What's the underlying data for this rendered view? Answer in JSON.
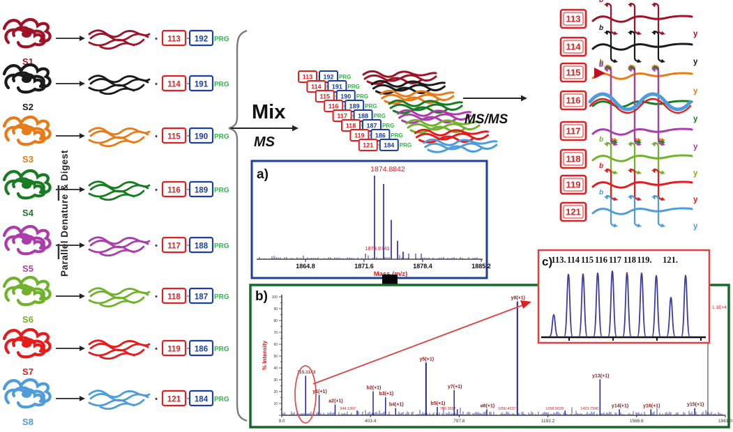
{
  "figure": {
    "left_panel": {
      "digest_label_vertical": "Parallel  Denature  & Digest",
      "plus": "•",
      "samples": [
        {
          "id": "S1",
          "color": "#9e1328",
          "reporter": "113",
          "balance": "192",
          "prg": "PRG"
        },
        {
          "id": "S2",
          "color": "#1a1a1a",
          "reporter": "114",
          "balance": "191",
          "prg": "PRG"
        },
        {
          "id": "S3",
          "color": "#e87a18",
          "reporter": "115",
          "balance": "190",
          "prg": "PRG"
        },
        {
          "id": "S4",
          "color": "#177c22",
          "reporter": "116",
          "balance": "189",
          "prg": "PRG"
        },
        {
          "id": "S5",
          "color": "#ab3dab",
          "reporter": "117",
          "balance": "188",
          "prg": "PRG"
        },
        {
          "id": "S6",
          "color": "#70b22b",
          "reporter": "118",
          "balance": "187",
          "prg": "PRG"
        },
        {
          "id": "S7",
          "color": "#e41c1c",
          "reporter": "119",
          "balance": "186",
          "prg": "PRG"
        },
        {
          "id": "S8",
          "color": "#4f9cda",
          "reporter": "121",
          "balance": "184",
          "prg": "PRG"
        }
      ]
    },
    "mix_label": "Mix",
    "ms_label": "MS",
    "msms_label": "MS/MS",
    "right_panel": {
      "reporters": [
        "113",
        "114",
        "115",
        "116",
        "117",
        "118",
        "119",
        "121"
      ],
      "b_label": "b",
      "y_label": "y"
    },
    "colors": {
      "red_box": "#e02020",
      "blue_box": "#1c3f9e",
      "prg_green": "#35b44a",
      "panel_a_border": "#1c3f9e",
      "panel_b_border": "#17682c",
      "panel_c_border": "#e04040",
      "spectrum": "#22229a",
      "annotation_red": "#d42020",
      "ion_label": "#8b2020",
      "brace": "#7a7a7a"
    }
  },
  "chart_data": [
    {
      "panel": "a",
      "panel_label": "a)",
      "type": "line",
      "xlabel": "Mass (m/z)",
      "x_tick_labels": [
        "1864.8",
        "1871.6",
        "1878.4",
        "1885.2"
      ],
      "xlim": [
        1858,
        1890
      ],
      "annotation_top": "1874.8842",
      "annotation_base": "1873.8741",
      "peaks": [
        {
          "mz": 1874.88,
          "rel": 1.0
        },
        {
          "mz": 1875.88,
          "rel": 0.9
        },
        {
          "mz": 1876.88,
          "rel": 0.47
        },
        {
          "mz": 1877.88,
          "rel": 0.22
        },
        {
          "mz": 1878.9,
          "rel": 0.09
        }
      ]
    },
    {
      "panel": "b",
      "panel_label": "b)",
      "type": "line",
      "ylabel": "% Intensity",
      "x_tick_labels": [
        "9.0",
        "403.4",
        "797.8",
        "1192.2",
        "1586.6",
        "1981.0"
      ],
      "xlim": [
        9,
        1981
      ],
      "ylim": [
        0,
        100
      ],
      "peaks": [
        {
          "mz": 115.1,
          "pct": 33,
          "top": "115.1143"
        },
        {
          "mz": 175.1,
          "pct": 17,
          "top": "y1(+1)"
        },
        {
          "mz": 246.2,
          "pct": 9,
          "top": "a2(+1)"
        },
        {
          "mz": 344.1,
          "pct": 4,
          "base": "344.1307"
        },
        {
          "mz": 415.2,
          "pct": 20,
          "top": "b2(+1)"
        },
        {
          "mz": 470.3,
          "pct": 15,
          "top": "b3(+1)"
        },
        {
          "mz": 515.3,
          "pct": 6,
          "top": "b4(+1)"
        },
        {
          "mz": 650.4,
          "pct": 44,
          "top": "y5(+1)"
        },
        {
          "mz": 700.4,
          "pct": 7,
          "top": "b5(+1)"
        },
        {
          "mz": 775.4,
          "pct": 21,
          "top": "y7(+1)"
        },
        {
          "mz": 789.4,
          "pct": 5,
          "base": "789.3637"
        },
        {
          "mz": 920.5,
          "pct": 5,
          "top": "a6(+1)"
        },
        {
          "mz": 1056.4,
          "pct": 95,
          "top": "y8(+1)",
          "base": "1056.4237"
        },
        {
          "mz": 1268.5,
          "pct": 4,
          "base": "1268.5028"
        },
        {
          "mz": 1423.8,
          "pct": 30,
          "top": "y13(+1)",
          "base": "1423.7590"
        },
        {
          "mz": 1510,
          "pct": 5,
          "top": "y14(+1)"
        },
        {
          "mz": 1650,
          "pct": 5,
          "top": "y16(+1)"
        },
        {
          "mz": 1845,
          "pct": 6,
          "top": "y15(+1)"
        }
      ]
    },
    {
      "panel": "c",
      "panel_label": "c)",
      "type": "line",
      "top_labels": [
        "113.",
        "114",
        "115",
        "116",
        "117",
        "118",
        "119.",
        "121."
      ],
      "scale_label": "1.1E+4",
      "peaks": [
        {
          "mz": 112,
          "rel": 0.34
        },
        {
          "mz": 113,
          "rel": 0.95
        },
        {
          "mz": 114,
          "rel": 0.95
        },
        {
          "mz": 115,
          "rel": 0.97
        },
        {
          "mz": 116,
          "rel": 1.0
        },
        {
          "mz": 117,
          "rel": 0.97
        },
        {
          "mz": 118,
          "rel": 0.97
        },
        {
          "mz": 119,
          "rel": 0.93
        },
        {
          "mz": 120,
          "rel": 0.6
        },
        {
          "mz": 121,
          "rel": 0.93
        }
      ]
    }
  ]
}
